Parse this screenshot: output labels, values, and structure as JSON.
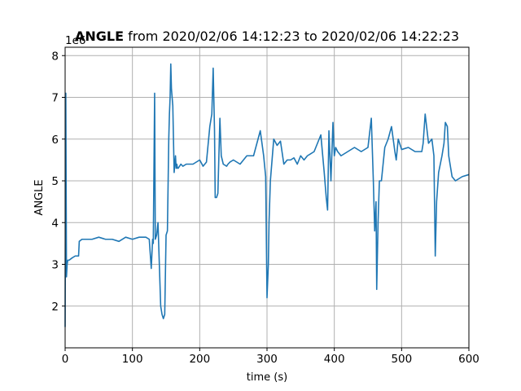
{
  "chart_data": {
    "type": "line",
    "title": {
      "bold_part": "ANGLE",
      "rest": " from 2020/02/06 14:12:23 to 2020/02/06 14:22:23"
    },
    "offset_text": "1e6",
    "xlabel": "time (s)",
    "ylabel": "ANGLE",
    "xlim": [
      0,
      600
    ],
    "ylim": [
      1.0,
      8.2
    ],
    "y_scale_multiplier": 1000000,
    "xticks": [
      0,
      100,
      200,
      300,
      400,
      500,
      600
    ],
    "yticks": [
      2,
      3,
      4,
      5,
      6,
      7,
      8
    ],
    "grid": true,
    "line_color": "#1f77b4",
    "series": [
      {
        "x": [
          0,
          1,
          2,
          3,
          4,
          6,
          10,
          15,
          20,
          21,
          25,
          30,
          40,
          50,
          60,
          70,
          80,
          90,
          100,
          110,
          120,
          125,
          128,
          130,
          131,
          133,
          134,
          136,
          138,
          140,
          142,
          144,
          146,
          148,
          150,
          152,
          154,
          155,
          156,
          157,
          158,
          160,
          162,
          164,
          165,
          166,
          167,
          168,
          170,
          172,
          175,
          180,
          190,
          200,
          205,
          210,
          215,
          218,
          220,
          222,
          223,
          225,
          227,
          230,
          232,
          235,
          240,
          242,
          245,
          250,
          260,
          270,
          280,
          290,
          295,
          298,
          300,
          302,
          303,
          305,
          310,
          315,
          320,
          325,
          330,
          335,
          340,
          345,
          350,
          355,
          360,
          370,
          380,
          385,
          388,
          390,
          392,
          395,
          398,
          400,
          402,
          405,
          410,
          420,
          430,
          440,
          450,
          455,
          458,
          460,
          462,
          463,
          465,
          467,
          470,
          475,
          480,
          485,
          490,
          492,
          495,
          500,
          510,
          520,
          530,
          532,
          535,
          540,
          545,
          548,
          550,
          552,
          555,
          560,
          563,
          565,
          568,
          570,
          575,
          580,
          590,
          600
        ],
        "y": [
          1.5,
          7.1,
          2.7,
          3.0,
          3.1,
          3.1,
          3.15,
          3.2,
          3.2,
          3.55,
          3.6,
          3.6,
          3.6,
          3.65,
          3.6,
          3.6,
          3.55,
          3.65,
          3.6,
          3.65,
          3.65,
          3.6,
          2.9,
          3.6,
          3.5,
          7.1,
          3.6,
          3.7,
          4.0,
          3.0,
          2.0,
          1.8,
          1.7,
          1.8,
          3.7,
          3.8,
          6.0,
          6.6,
          7.0,
          7.8,
          7.2,
          6.8,
          5.2,
          5.6,
          5.3,
          5.4,
          5.3,
          5.3,
          5.35,
          5.4,
          5.35,
          5.4,
          5.4,
          5.5,
          5.35,
          5.45,
          6.3,
          6.6,
          7.7,
          6.2,
          4.6,
          4.6,
          4.7,
          6.5,
          5.6,
          5.4,
          5.35,
          5.4,
          5.45,
          5.5,
          5.4,
          5.6,
          5.6,
          6.2,
          5.6,
          5.1,
          2.2,
          3.0,
          4.0,
          5.0,
          6.0,
          5.85,
          5.95,
          5.4,
          5.5,
          5.5,
          5.55,
          5.4,
          5.6,
          5.5,
          5.6,
          5.7,
          6.1,
          5.2,
          4.6,
          4.3,
          6.2,
          5.0,
          6.4,
          5.6,
          5.8,
          5.7,
          5.6,
          5.7,
          5.8,
          5.7,
          5.8,
          6.5,
          5.0,
          3.8,
          4.5,
          2.4,
          4.0,
          5.0,
          5.0,
          5.8,
          6.0,
          6.3,
          5.7,
          5.5,
          6.0,
          5.75,
          5.8,
          5.7,
          5.7,
          5.9,
          6.6,
          5.9,
          6.0,
          5.6,
          3.2,
          4.5,
          5.2,
          5.6,
          5.9,
          6.4,
          6.3,
          5.6,
          5.1,
          5.0,
          5.1,
          5.15
        ]
      }
    ]
  }
}
